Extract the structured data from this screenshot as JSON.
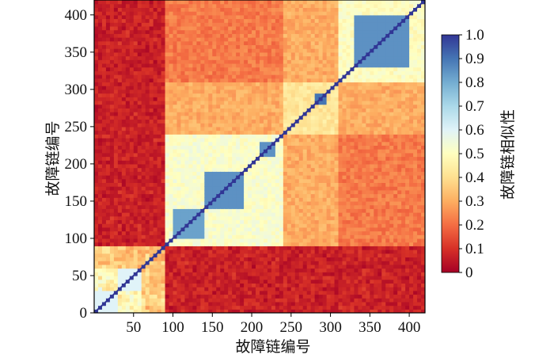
{
  "chart_data": {
    "type": "heatmap",
    "title": "",
    "xlabel": "故障链编号",
    "ylabel": "故障链编号",
    "xlim": [
      0,
      420
    ],
    "ylim": [
      0,
      420
    ],
    "x_ticks": [
      50,
      100,
      150,
      200,
      250,
      300,
      350,
      400
    ],
    "y_ticks": [
      0,
      50,
      100,
      150,
      200,
      250,
      300,
      350,
      400
    ],
    "colorbar": {
      "label": "故障链相似性",
      "range": [
        0,
        1
      ],
      "ticks": [
        "0",
        "0.1",
        "0.2",
        "0.3",
        "0.4",
        "0.5",
        "0.6",
        "0.7",
        "0.8",
        "0.9",
        "1.0"
      ],
      "colormap": [
        "#a50026",
        "#d73027",
        "#f46d43",
        "#fdae61",
        "#fee090",
        "#ffffbf",
        "#e0f3f8",
        "#abd9e9",
        "#74add1",
        "#4575b4",
        "#313695"
      ]
    },
    "diagonal_value": 1.0,
    "clusters": [
      {
        "range": [
          0,
          30
        ],
        "within_similarity": 0.6
      },
      {
        "range": [
          30,
          60
        ],
        "within_similarity": 0.6
      },
      {
        "range": [
          100,
          140
        ],
        "within_similarity": 0.82
      },
      {
        "range": [
          140,
          190
        ],
        "within_similarity": 0.85
      },
      {
        "range": [
          210,
          230
        ],
        "within_similarity": 0.85
      },
      {
        "range": [
          280,
          295
        ],
        "within_similarity": 0.9
      },
      {
        "range": [
          330,
          400
        ],
        "within_similarity": 0.85
      }
    ],
    "background_similarity": 0.05
  }
}
